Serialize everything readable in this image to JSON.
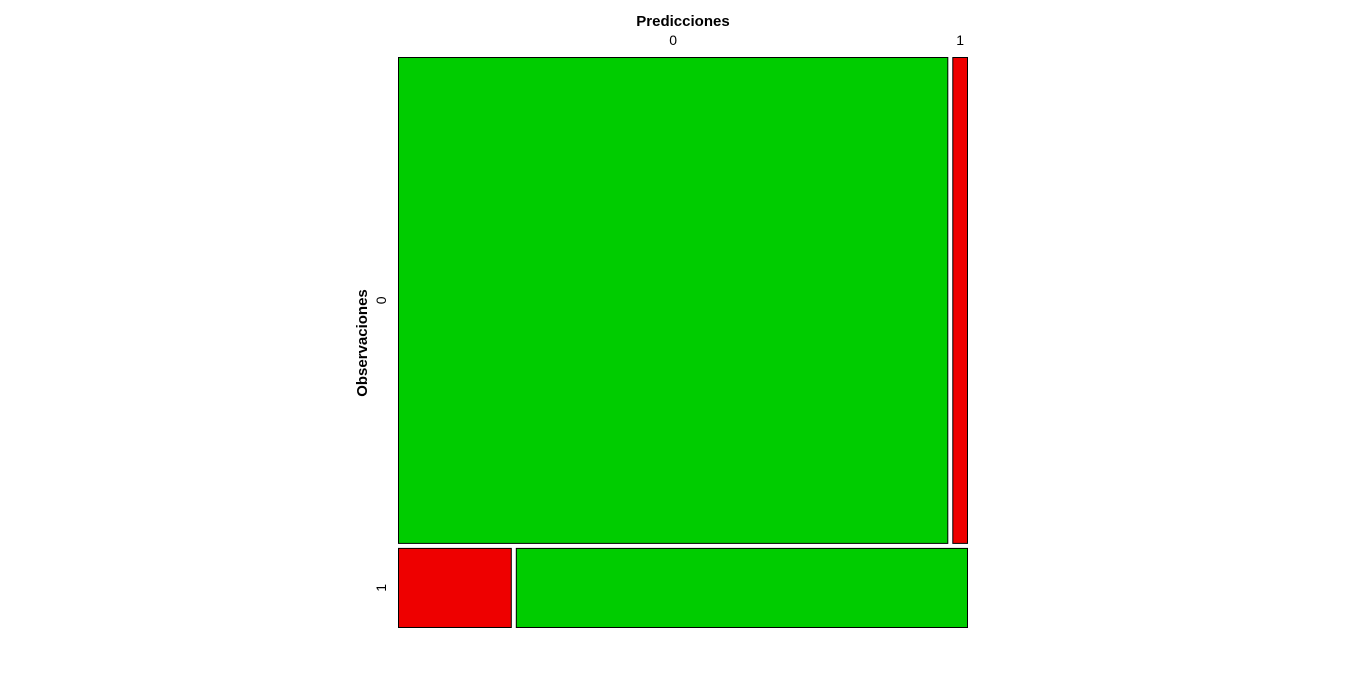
{
  "chart_data": {
    "type": "mosaic",
    "title": "Predicciones",
    "xlabel": "Predicciones",
    "ylabel": "Observaciones",
    "x_categories": [
      "0",
      "1"
    ],
    "y_categories": [
      "0",
      "1"
    ],
    "row_proportions": [
      0.86,
      0.14
    ],
    "cells": [
      {
        "observed": "0",
        "predicted": "0",
        "proportion_within_row": 0.974,
        "correct": true
      },
      {
        "observed": "0",
        "predicted": "1",
        "proportion_within_row": 0.026,
        "correct": false
      },
      {
        "observed": "1",
        "predicted": "0",
        "proportion_within_row": 0.2,
        "correct": false
      },
      {
        "observed": "1",
        "predicted": "1",
        "proportion_within_row": 0.8,
        "correct": true
      }
    ],
    "colors": {
      "correct": "#00CC00",
      "incorrect": "#EE0000",
      "border": "#000000"
    },
    "grid": false,
    "legend": "none"
  }
}
